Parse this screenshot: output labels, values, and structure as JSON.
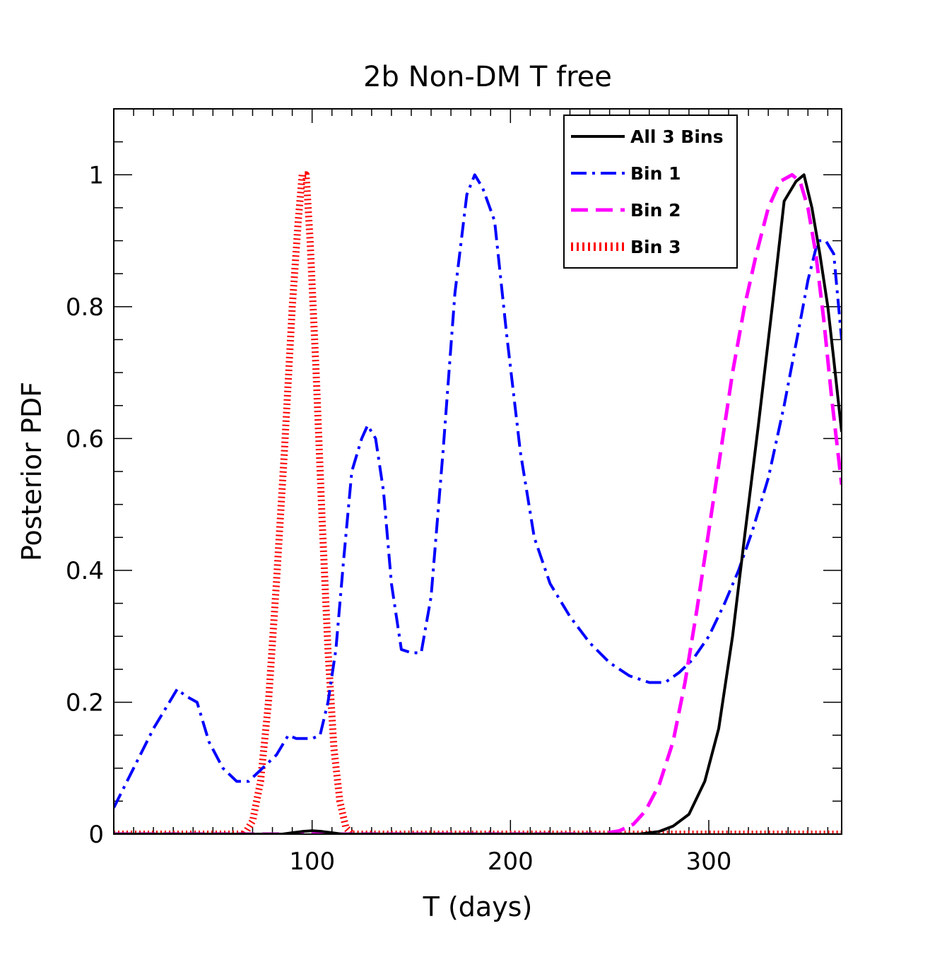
{
  "chart_data": {
    "type": "line",
    "title": "2b Non-DM T free",
    "xlabel": "T (days)",
    "ylabel": "Posterior PDF",
    "xlim": [
      0,
      367
    ],
    "ylim": [
      0,
      1.1
    ],
    "xticks": [
      100,
      200,
      300
    ],
    "yticks": [
      0,
      0.2,
      0.4,
      0.6,
      0.8,
      1
    ],
    "ytick_labels": [
      "0",
      "0.2",
      "0.4",
      "0.6",
      "0.8",
      "1"
    ],
    "legend_position": "top-right",
    "series": [
      {
        "name": "All 3 Bins",
        "color": "#000000",
        "style": "solid",
        "x": [
          0,
          85,
          90,
          95,
          100,
          105,
          110,
          115,
          265,
          275,
          282,
          290,
          298,
          305,
          312,
          318,
          325,
          332,
          338,
          344,
          348,
          352,
          356,
          360,
          363,
          367
        ],
        "y": [
          0,
          0,
          0.002,
          0.004,
          0.005,
          0.004,
          0.002,
          0,
          0,
          0.004,
          0.012,
          0.03,
          0.08,
          0.16,
          0.3,
          0.45,
          0.62,
          0.8,
          0.96,
          0.99,
          1.0,
          0.95,
          0.88,
          0.8,
          0.72,
          0.61
        ]
      },
      {
        "name": "Bin 1",
        "color": "#0000ff",
        "style": "dashdot",
        "x": [
          0,
          10,
          20,
          28,
          32,
          36,
          42,
          48,
          55,
          62,
          68,
          75,
          82,
          88,
          92,
          96,
          100,
          104,
          108,
          112,
          116,
          120,
          125,
          128,
          132,
          136,
          140,
          145,
          150,
          155,
          160,
          166,
          172,
          178,
          182,
          186,
          192,
          198,
          205,
          212,
          220,
          230,
          240,
          250,
          260,
          270,
          278,
          285,
          292,
          300,
          308,
          315,
          322,
          330,
          338,
          345,
          350,
          355,
          359,
          363,
          367
        ],
        "y": [
          0.04,
          0.1,
          0.16,
          0.2,
          0.22,
          0.21,
          0.2,
          0.14,
          0.1,
          0.08,
          0.08,
          0.1,
          0.12,
          0.15,
          0.145,
          0.145,
          0.145,
          0.15,
          0.2,
          0.28,
          0.42,
          0.55,
          0.6,
          0.62,
          0.6,
          0.52,
          0.38,
          0.28,
          0.275,
          0.275,
          0.36,
          0.58,
          0.82,
          0.97,
          1.0,
          0.98,
          0.93,
          0.76,
          0.58,
          0.45,
          0.38,
          0.33,
          0.29,
          0.26,
          0.24,
          0.23,
          0.23,
          0.245,
          0.265,
          0.3,
          0.35,
          0.4,
          0.46,
          0.54,
          0.65,
          0.76,
          0.84,
          0.9,
          0.9,
          0.88,
          0.75
        ]
      },
      {
        "name": "Bin 2",
        "color": "#ff00ff",
        "style": "dashed",
        "x": [
          0,
          245,
          255,
          262,
          268,
          275,
          282,
          288,
          294,
          300,
          306,
          312,
          318,
          324,
          330,
          336,
          342,
          346,
          350,
          354,
          358,
          362,
          367
        ],
        "y": [
          0,
          0,
          0.005,
          0.015,
          0.035,
          0.075,
          0.14,
          0.23,
          0.34,
          0.46,
          0.58,
          0.7,
          0.8,
          0.88,
          0.95,
          0.99,
          1.0,
          0.99,
          0.95,
          0.88,
          0.78,
          0.66,
          0.53
        ]
      },
      {
        "name": "Bin 3",
        "color": "#ff0000",
        "style": "dotted",
        "x": [
          0,
          66,
          70,
          74,
          78,
          82,
          86,
          90,
          93,
          95,
          97,
          99,
          102,
          105,
          108,
          111,
          114,
          117,
          120,
          367
        ],
        "y": [
          0,
          0,
          0.02,
          0.08,
          0.2,
          0.38,
          0.58,
          0.8,
          0.93,
          1.0,
          1.0,
          0.9,
          0.7,
          0.48,
          0.28,
          0.13,
          0.05,
          0.01,
          0,
          0
        ]
      }
    ]
  }
}
